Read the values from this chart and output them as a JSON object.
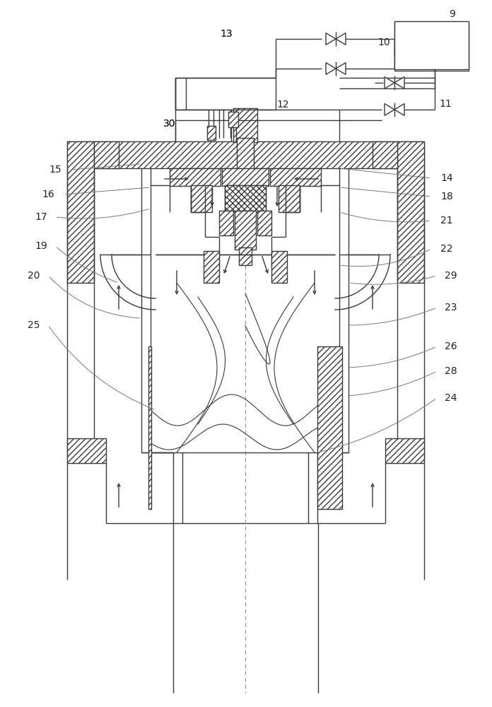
{
  "bg_color": "#ffffff",
  "lc": "#3a3a3a",
  "lw": 1.0,
  "fig_w": 6.96,
  "fig_h": 10.0,
  "dpi": 100,
  "label_fs": 10,
  "label_color": "#222222"
}
